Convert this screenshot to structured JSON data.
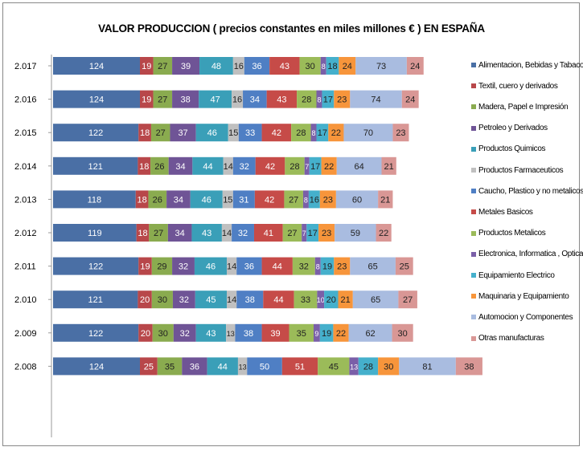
{
  "chart_data": {
    "type": "bar",
    "stacked": true,
    "orientation": "horizontal",
    "title": "VALOR PRODUCCION ( precios constantes en miles  millones € ) EN ESPAÑA",
    "categories": [
      "2.017",
      "2.016",
      "2.015",
      "2.014",
      "2.013",
      "2.012",
      "2.011",
      "2.010",
      "2.009",
      "2.008"
    ],
    "series": [
      {
        "name": "Alimentacion, Bebidas y Tabaco",
        "color": "#4a6fa5",
        "values": [
          124,
          124,
          122,
          121,
          118,
          119,
          122,
          121,
          122,
          124
        ]
      },
      {
        "name": "Textil, cuero y derivados",
        "color": "#b8474a",
        "values": [
          19,
          19,
          18,
          18,
          18,
          18,
          19,
          20,
          20,
          25
        ]
      },
      {
        "name": "Madera, Papel e Impresión",
        "color": "#8aab4f",
        "values": [
          27,
          27,
          27,
          26,
          26,
          27,
          29,
          30,
          30,
          35
        ]
      },
      {
        "name": "Petroleo y Derivados",
        "color": "#6f5496",
        "values": [
          39,
          38,
          37,
          34,
          34,
          34,
          32,
          32,
          32,
          36
        ]
      },
      {
        "name": "Productos Quimicos",
        "color": "#3a9fb8",
        "values": [
          48,
          47,
          46,
          44,
          46,
          43,
          46,
          45,
          43,
          44
        ]
      },
      {
        "name": "Productos Farmaceuticos",
        "color": "#c0c0c0",
        "values": [
          16,
          16,
          15,
          14,
          15,
          14,
          14,
          14,
          13,
          13
        ]
      },
      {
        "name": "Caucho, Plastico y no metalicos",
        "color": "#4f7fc4",
        "values": [
          36,
          34,
          33,
          32,
          31,
          32,
          36,
          38,
          38,
          50
        ]
      },
      {
        "name": "Metales Basicos",
        "color": "#c64b48",
        "values": [
          43,
          43,
          42,
          42,
          42,
          41,
          44,
          44,
          39,
          51
        ]
      },
      {
        "name": "Productos Metalicos",
        "color": "#9bbb59",
        "values": [
          30,
          28,
          28,
          28,
          27,
          27,
          32,
          33,
          35,
          45
        ]
      },
      {
        "name": "Electronica, Informatica , Optica",
        "color": "#7a5fa8",
        "values": [
          8,
          8,
          8,
          7,
          8,
          7,
          8,
          10,
          9,
          13
        ]
      },
      {
        "name": "Equipamiento Electrico",
        "color": "#45b0cc",
        "values": [
          18,
          17,
          17,
          17,
          16,
          17,
          19,
          20,
          19,
          28
        ]
      },
      {
        "name": "Maquinaria y Equipamiento",
        "color": "#f7953b",
        "values": [
          24,
          23,
          22,
          22,
          23,
          23,
          23,
          21,
          22,
          30
        ]
      },
      {
        "name": "Automocion y Componentes",
        "color": "#a9bce0",
        "values": [
          73,
          74,
          70,
          64,
          60,
          59,
          65,
          65,
          62,
          81
        ]
      },
      {
        "name": "Otras manufacturas",
        "color": "#d99795",
        "values": [
          24,
          24,
          23,
          21,
          21,
          22,
          25,
          27,
          30,
          38
        ]
      }
    ],
    "legend": "right",
    "grid": false
  }
}
